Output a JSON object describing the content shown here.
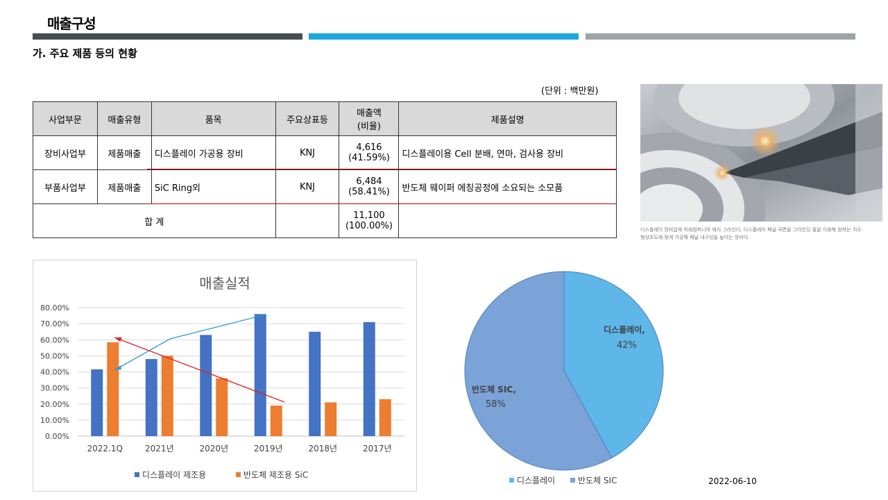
{
  "page": {
    "title": "매출구성",
    "subtitle": "가. 주요 제품 등의 현황",
    "unit_note": "(단위 : 백만원)",
    "date": "2022-06-10",
    "bar_colors": [
      "#474d54",
      "#1aa8df",
      "#9da3a7"
    ]
  },
  "table": {
    "headers": [
      "사업부문",
      "매출유형",
      "품목",
      "주요상표등",
      "매출액",
      "(비율)",
      "제품설명"
    ],
    "rows": [
      {
        "division": "장비사업부",
        "type": "제품매출",
        "item": "디스플레이 가공용 장비",
        "brand": "KNJ",
        "amount": "4,616",
        "ratio": "(41.59%)",
        "desc": "디스플레이용 Cell 분배, 연마, 검사용 장비"
      },
      {
        "division": "부품사업부",
        "type": "제품매출",
        "item": "SiC Ring외",
        "brand": "KNJ",
        "amount": "6,484",
        "ratio": "(58.41%)",
        "desc": "반도체 웨이퍼 에칭공정에 소요되는 소모품"
      }
    ],
    "total": {
      "label": "합 계",
      "amount": "11,100",
      "ratio": "(100.00%)"
    }
  },
  "photo": {
    "caption_line1": "디스플레이 장비업체 미래컴퍼니의 에지 그라인더. 디스플레이 패널 곡면을 그라인딩 휠을 이용해 원하는 치수·",
    "caption_line2": "형상조도에 맞게 가공해 패널 내구성을 높이는 장비다."
  },
  "chart_data": [
    {
      "type": "bar",
      "title": "매출실적",
      "categories": [
        "2022.1Q",
        "2021년",
        "2020년",
        "2019년",
        "2018년",
        "2017년"
      ],
      "series": [
        {
          "name": "디스플레이 제조용",
          "color": "#4472c4",
          "values": [
            41.6,
            48.0,
            63.0,
            76.0,
            65.0,
            71.0
          ]
        },
        {
          "name": "반도체 제조용 SiC",
          "color": "#ed7d31",
          "values": [
            58.4,
            50.0,
            36.0,
            19.0,
            21.0,
            23.0
          ]
        }
      ],
      "ylim": [
        0,
        80
      ],
      "yticks": [
        "0.00%",
        "10.00%",
        "20.00%",
        "30.00%",
        "40.00%",
        "50.00%",
        "60.00%",
        "70.00%",
        "80.00%"
      ],
      "grid": true,
      "legend": "bottom"
    },
    {
      "type": "pie",
      "slices": [
        {
          "label": "디스플레이",
          "pct_label": "42%",
          "value": 42,
          "color": "#5fb6e8"
        },
        {
          "label": "반도체 SIC",
          "pct_label": "58%",
          "value": 58,
          "color": "#7ba3d8"
        }
      ],
      "legend": "bottom-left"
    }
  ]
}
